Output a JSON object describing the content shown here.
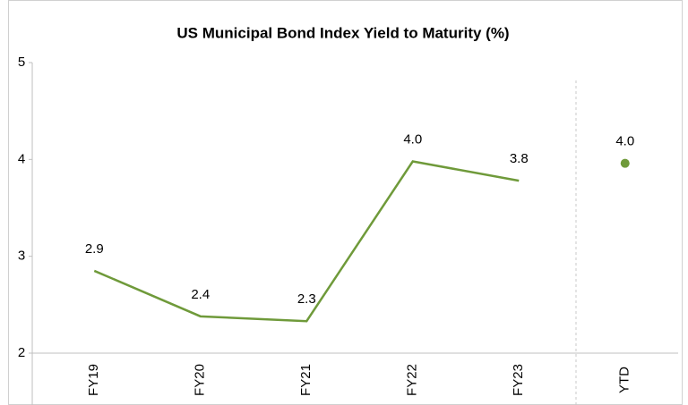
{
  "chart_data": {
    "type": "line",
    "title": "US Municipal Bond Index Yield to Maturity (%)",
    "categories": [
      "FY19",
      "FY20",
      "FY21",
      "FY22",
      "FY23",
      "YTD"
    ],
    "series": [
      {
        "color": "#6f9a3a",
        "style": "line",
        "values": [
          2.85,
          2.38,
          2.33,
          3.98,
          3.78,
          null
        ],
        "value_labels": [
          "2.9",
          "2.4",
          "2.3",
          "4.0",
          "3.8",
          null
        ]
      },
      {
        "color": "#6f9a3a",
        "style": "dot",
        "values": [
          null,
          null,
          null,
          null,
          null,
          3.96
        ],
        "value_labels": [
          null,
          null,
          null,
          null,
          null,
          "4.0"
        ]
      }
    ],
    "ylim": [
      2,
      5
    ],
    "yticks": [
      2,
      3,
      4,
      5
    ],
    "grid": false
  }
}
